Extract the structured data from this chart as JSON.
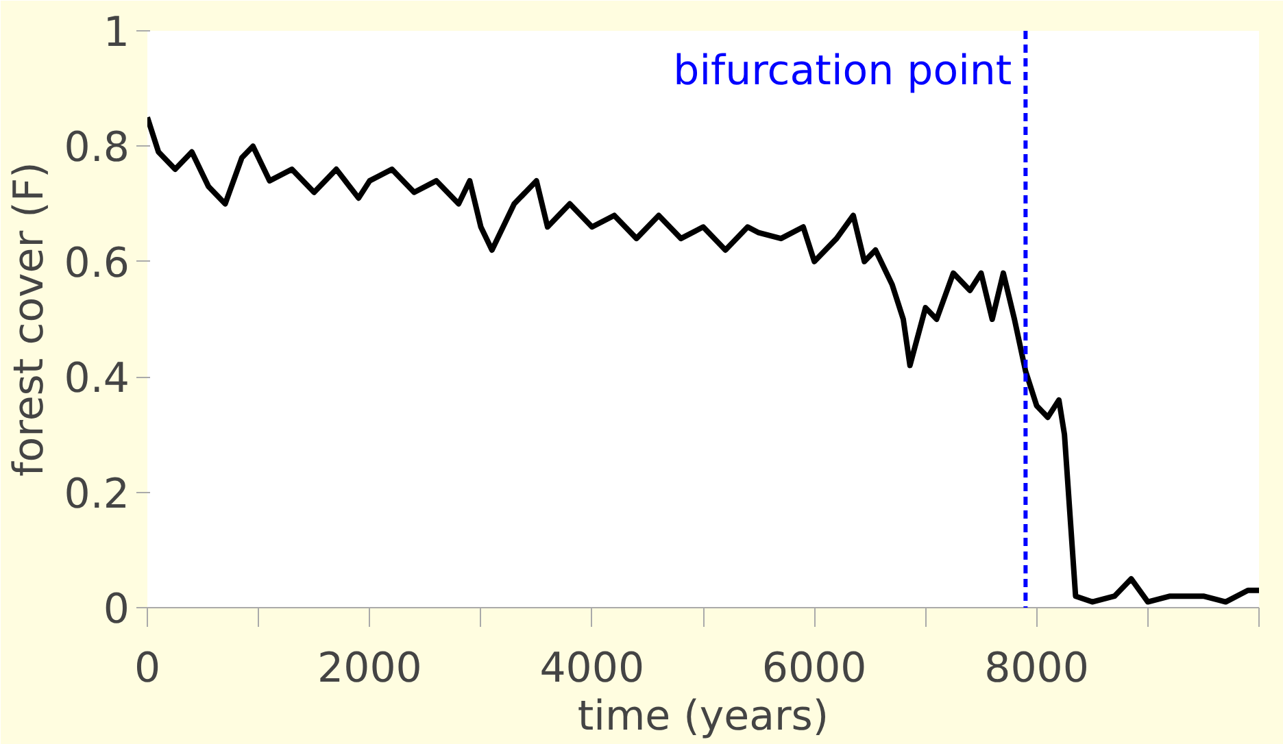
{
  "chart_data": {
    "type": "line",
    "xlabel": "time (years)",
    "ylabel": "forest cover (F)",
    "x": [
      0,
      100,
      250,
      400,
      550,
      700,
      850,
      950,
      1100,
      1300,
      1500,
      1700,
      1900,
      2000,
      2200,
      2400,
      2600,
      2800,
      2900,
      3000,
      3100,
      3300,
      3500,
      3600,
      3800,
      4000,
      4200,
      4400,
      4600,
      4800,
      5000,
      5200,
      5400,
      5500,
      5700,
      5900,
      6000,
      6200,
      6350,
      6450,
      6550,
      6700,
      6800,
      6860,
      7000,
      7100,
      7250,
      7400,
      7500,
      7600,
      7700,
      7800,
      7900,
      8000,
      8100,
      8200,
      8250,
      8350,
      8500,
      8700,
      8850,
      9000,
      9200,
      9500,
      9700,
      9900,
      10000
    ],
    "series": [
      {
        "color": "#000000",
        "values": [
          0.85,
          0.79,
          0.76,
          0.79,
          0.73,
          0.7,
          0.78,
          0.8,
          0.74,
          0.76,
          0.72,
          0.76,
          0.71,
          0.74,
          0.76,
          0.72,
          0.74,
          0.7,
          0.74,
          0.66,
          0.62,
          0.7,
          0.74,
          0.66,
          0.7,
          0.66,
          0.68,
          0.64,
          0.68,
          0.64,
          0.66,
          0.62,
          0.66,
          0.65,
          0.64,
          0.66,
          0.6,
          0.64,
          0.68,
          0.6,
          0.62,
          0.56,
          0.5,
          0.42,
          0.52,
          0.5,
          0.58,
          0.55,
          0.58,
          0.5,
          0.58,
          0.5,
          0.41,
          0.35,
          0.33,
          0.36,
          0.3,
          0.02,
          0.01,
          0.02,
          0.05,
          0.01,
          0.02,
          0.02,
          0.01,
          0.03,
          0.03
        ]
      }
    ],
    "xlim": [
      0,
      10000
    ],
    "xticks": [
      0,
      {
        "value": 1000,
        "label": null
      },
      2000,
      {
        "value": 3000,
        "label": null
      },
      4000,
      {
        "value": 5000,
        "label": null
      },
      6000,
      {
        "value": 7000,
        "label": null
      },
      8000,
      {
        "value": 9000,
        "label": null
      },
      {
        "value": 10000,
        "label": null
      }
    ],
    "ylim": [
      0,
      1
    ],
    "yticks": [
      0,
      0.2,
      0.4,
      0.6,
      0.8,
      1
    ],
    "ref_lines": [
      {
        "axis": "x",
        "value": 7900,
        "label": "bifurcation point",
        "color": "#0000ff",
        "line_style": "dashed"
      }
    ],
    "grid": false,
    "marker": "none",
    "line_style": "solid"
  }
}
